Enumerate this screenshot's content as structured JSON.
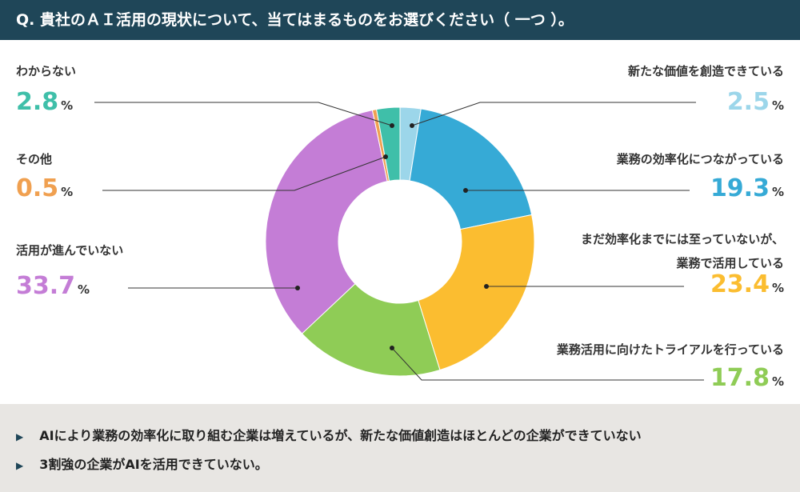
{
  "chart_data": {
    "type": "donut",
    "title": "Q. 貴社のＡＩ活用の現状について、当てはまるものをお選びください（ 一つ ）。",
    "categories": [
      "新たな価値を創造できている",
      "業務の効率化につながっている",
      "まだ効率化までには至っていないが、\n業務で活用している",
      "業務活用に向けたトライアルを行っている",
      "活用が進んでいない",
      "その他",
      "わからない"
    ],
    "values": [
      2.5,
      19.3,
      23.4,
      17.8,
      33.7,
      0.5,
      2.8
    ],
    "colors": [
      "#9cd6ea",
      "#36aad6",
      "#fbbd30",
      "#8fcc56",
      "#c47dd6",
      "#f0a050",
      "#3fbfa9"
    ],
    "unit": "%"
  },
  "notes": [
    "AIにより業務の効率化に取り組む企業は増えているが、新たな価値創造はほとんどの企業ができていない",
    "3割強の企業がAIを活用できていない。"
  ]
}
